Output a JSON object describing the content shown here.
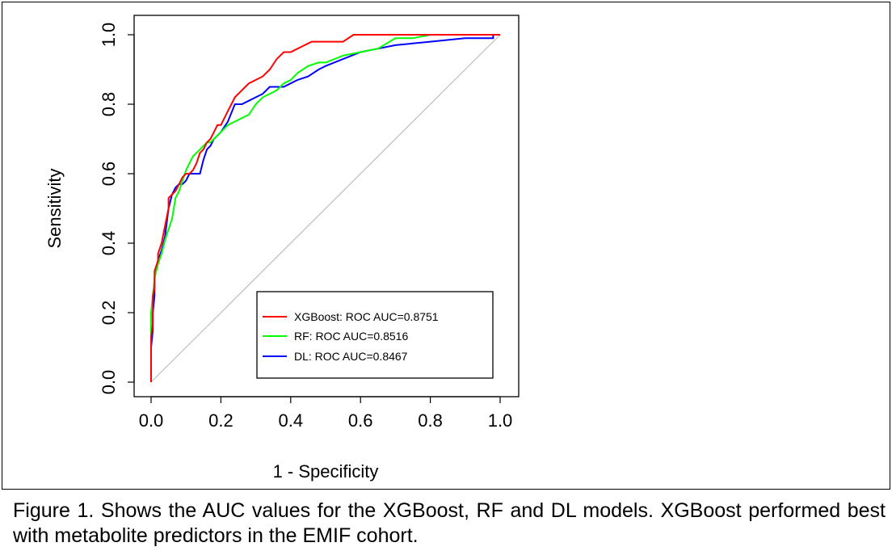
{
  "caption": "Figure 1. Shows the AUC values for the XGBoost, RF and DL models. XGBoost performed best with metabolite predictors in the EMIF cohort.",
  "chart_data": {
    "type": "line",
    "title": "",
    "xlabel": "1 - Specificity",
    "ylabel": "Sensitivity",
    "xlim": [
      0,
      1
    ],
    "ylim": [
      0,
      1
    ],
    "xticks": [
      "0.0",
      "0.2",
      "0.4",
      "0.6",
      "0.8",
      "1.0"
    ],
    "yticks": [
      "0.0",
      "0.2",
      "0.4",
      "0.6",
      "0.8",
      "1.0"
    ],
    "grid": false,
    "legend_position": "bottom-right",
    "reference_line": {
      "x": [
        0,
        1
      ],
      "y": [
        0,
        1
      ],
      "color": "#bdbdbd"
    },
    "series": [
      {
        "name": "XGBoost: ROC AUC=0.8751",
        "color": "#ff0000",
        "x": [
          0,
          0,
          0.005,
          0.005,
          0.01,
          0.01,
          0.02,
          0.02,
          0.03,
          0.04,
          0.05,
          0.05,
          0.06,
          0.07,
          0.08,
          0.09,
          0.1,
          0.11,
          0.12,
          0.13,
          0.14,
          0.15,
          0.16,
          0.17,
          0.18,
          0.19,
          0.2,
          0.21,
          0.22,
          0.23,
          0.24,
          0.25,
          0.26,
          0.27,
          0.28,
          0.3,
          0.32,
          0.34,
          0.36,
          0.38,
          0.4,
          0.42,
          0.44,
          0.46,
          0.48,
          0.5,
          0.55,
          0.58,
          0.6,
          0.7,
          0.8,
          0.9,
          1.0
        ],
        "y": [
          0,
          0.13,
          0.17,
          0.25,
          0.27,
          0.32,
          0.35,
          0.37,
          0.4,
          0.45,
          0.5,
          0.53,
          0.54,
          0.55,
          0.57,
          0.59,
          0.6,
          0.6,
          0.61,
          0.63,
          0.66,
          0.67,
          0.69,
          0.7,
          0.72,
          0.74,
          0.74,
          0.76,
          0.78,
          0.8,
          0.82,
          0.83,
          0.84,
          0.85,
          0.86,
          0.87,
          0.88,
          0.9,
          0.93,
          0.95,
          0.95,
          0.96,
          0.97,
          0.98,
          0.98,
          0.98,
          0.98,
          1.0,
          1.0,
          1.0,
          1.0,
          1.0,
          1.0
        ]
      },
      {
        "name": "RF: ROC AUC=0.8516",
        "color": "#00ff00",
        "x": [
          0,
          0,
          0.005,
          0.01,
          0.02,
          0.03,
          0.04,
          0.05,
          0.06,
          0.07,
          0.08,
          0.09,
          0.1,
          0.11,
          0.12,
          0.13,
          0.14,
          0.15,
          0.16,
          0.17,
          0.18,
          0.19,
          0.2,
          0.22,
          0.24,
          0.26,
          0.28,
          0.3,
          0.32,
          0.34,
          0.36,
          0.38,
          0.4,
          0.42,
          0.45,
          0.48,
          0.5,
          0.55,
          0.6,
          0.65,
          0.7,
          0.75,
          0.8,
          0.9,
          1.0
        ],
        "y": [
          0,
          0.2,
          0.25,
          0.3,
          0.34,
          0.37,
          0.41,
          0.44,
          0.47,
          0.53,
          0.55,
          0.58,
          0.61,
          0.63,
          0.65,
          0.66,
          0.67,
          0.68,
          0.69,
          0.69,
          0.7,
          0.71,
          0.72,
          0.74,
          0.75,
          0.76,
          0.77,
          0.8,
          0.82,
          0.83,
          0.84,
          0.86,
          0.87,
          0.89,
          0.91,
          0.92,
          0.92,
          0.94,
          0.95,
          0.96,
          0.99,
          0.99,
          1.0,
          1.0,
          1.0
        ]
      },
      {
        "name": "DL: ROC AUC=0.8467",
        "color": "#0000ff",
        "x": [
          0,
          0,
          0.005,
          0.005,
          0.01,
          0.01,
          0.02,
          0.03,
          0.04,
          0.05,
          0.06,
          0.07,
          0.08,
          0.09,
          0.1,
          0.11,
          0.12,
          0.13,
          0.14,
          0.15,
          0.16,
          0.17,
          0.18,
          0.2,
          0.22,
          0.24,
          0.26,
          0.28,
          0.3,
          0.32,
          0.34,
          0.36,
          0.38,
          0.4,
          0.42,
          0.45,
          0.48,
          0.5,
          0.55,
          0.6,
          0.65,
          0.7,
          0.8,
          0.9,
          0.98,
          0.98,
          1.0
        ],
        "y": [
          0,
          0.1,
          0.15,
          0.2,
          0.25,
          0.3,
          0.35,
          0.38,
          0.42,
          0.5,
          0.54,
          0.56,
          0.57,
          0.57,
          0.58,
          0.6,
          0.6,
          0.6,
          0.6,
          0.64,
          0.67,
          0.68,
          0.7,
          0.72,
          0.75,
          0.8,
          0.8,
          0.81,
          0.82,
          0.83,
          0.85,
          0.85,
          0.85,
          0.86,
          0.87,
          0.88,
          0.9,
          0.91,
          0.93,
          0.95,
          0.96,
          0.97,
          0.98,
          0.99,
          0.99,
          1.0,
          1.0
        ]
      }
    ]
  }
}
